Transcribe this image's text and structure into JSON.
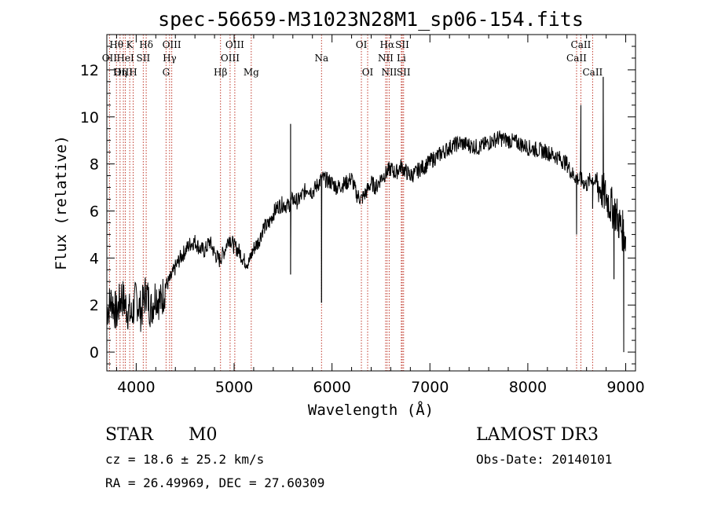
{
  "chart_data": {
    "type": "line",
    "title": "spec-56659-M31023N28M1_sp06-154.fits",
    "xlabel": "Wavelength (Å)",
    "ylabel": "Flux (relative)",
    "xlim": [
      3700,
      9100
    ],
    "ylim": [
      -0.8,
      13.5
    ],
    "xticks": [
      4000,
      5000,
      6000,
      7000,
      8000,
      9000
    ],
    "yticks": [
      0,
      2,
      4,
      6,
      8,
      10,
      12
    ],
    "tick_labels_x": [
      "4000",
      "5000",
      "6000",
      "7000",
      "8000",
      "9000"
    ],
    "tick_labels_y": [
      "0",
      "2",
      "4",
      "6",
      "8",
      "10",
      "12"
    ],
    "series": [
      {
        "name": "flux",
        "x": [
          3700,
          3750,
          3800,
          3850,
          3900,
          3950,
          4000,
          4050,
          4100,
          4150,
          4200,
          4250,
          4300,
          4350,
          4400,
          4450,
          4500,
          4550,
          4600,
          4650,
          4700,
          4750,
          4800,
          4850,
          4900,
          4950,
          5000,
          5050,
          5100,
          5150,
          5200,
          5250,
          5300,
          5350,
          5400,
          5450,
          5500,
          5550,
          5600,
          5650,
          5700,
          5750,
          5800,
          5850,
          5900,
          5950,
          6000,
          6050,
          6100,
          6150,
          6200,
          6250,
          6300,
          6350,
          6400,
          6450,
          6500,
          6550,
          6600,
          6650,
          6700,
          6750,
          6800,
          6850,
          6900,
          6950,
          7000,
          7100,
          7200,
          7300,
          7400,
          7500,
          7600,
          7700,
          7800,
          7900,
          8000,
          8100,
          8200,
          8300,
          8400,
          8450,
          8500,
          8550,
          8600,
          8650,
          8700,
          8750,
          8800,
          8850,
          8900,
          8950,
          9000
        ],
        "y": [
          1.8,
          2.2,
          1.6,
          2.4,
          1.9,
          1.5,
          2.3,
          1.7,
          2.6,
          1.8,
          2.5,
          2.1,
          2.8,
          3.1,
          3.6,
          4.0,
          4.3,
          4.6,
          4.7,
          4.4,
          4.3,
          4.7,
          4.2,
          3.9,
          4.3,
          4.9,
          4.5,
          4.3,
          3.9,
          3.8,
          4.4,
          4.7,
          5.3,
          5.4,
          5.9,
          6.2,
          6.3,
          6.2,
          6.5,
          6.4,
          6.7,
          7.0,
          6.8,
          7.1,
          7.4,
          7.3,
          7.2,
          7.0,
          7.1,
          7.2,
          7.4,
          6.7,
          6.5,
          6.8,
          7.2,
          7.0,
          7.4,
          7.6,
          7.8,
          7.6,
          7.9,
          7.7,
          7.5,
          7.6,
          7.8,
          7.9,
          8.1,
          8.4,
          8.7,
          8.9,
          8.8,
          8.7,
          8.9,
          9.1,
          9.0,
          8.9,
          8.7,
          8.6,
          8.5,
          8.3,
          8.0,
          7.6,
          7.4,
          7.3,
          7.1,
          7.4,
          7.2,
          6.9,
          6.6,
          6.2,
          5.9,
          5.3,
          4.9
        ]
      }
    ],
    "features": [
      {
        "x": 5577,
        "y": 9.7
      },
      {
        "x": 5577,
        "y": 3.3
      },
      {
        "x": 5893,
        "y": 2.1
      },
      {
        "x": 8498,
        "y": 5.0
      },
      {
        "x": 8542,
        "y": 10.5
      },
      {
        "x": 8662,
        "y": 6.1
      },
      {
        "x": 8770,
        "y": 11.7
      },
      {
        "x": 8880,
        "y": 3.1
      },
      {
        "x": 8980,
        "y": 0.0
      }
    ],
    "annotation_lines": [
      {
        "label": "Hθ",
        "x": 3798,
        "row": 1
      },
      {
        "label": "OII",
        "x": 3727,
        "row": 2
      },
      {
        "label": "OIII",
        "x": 3869,
        "row": 3
      },
      {
        "label": "Hη",
        "x": 3835,
        "row": 3
      },
      {
        "label": "HeI",
        "x": 3889,
        "row": 2
      },
      {
        "label": "K",
        "x": 3934,
        "row": 1
      },
      {
        "label": "SII",
        "x": 4072,
        "row": 2
      },
      {
        "label": "H",
        "x": 3969,
        "row": 3
      },
      {
        "label": "Hδ",
        "x": 4102,
        "row": 1
      },
      {
        "label": "OIII",
        "x": 4363,
        "row": 1
      },
      {
        "label": "Hγ",
        "x": 4341,
        "row": 2
      },
      {
        "label": "G",
        "x": 4305,
        "row": 3
      },
      {
        "label": "OIII",
        "x": 5007,
        "row": 1
      },
      {
        "label": "OIII",
        "x": 4959,
        "row": 2
      },
      {
        "label": "Hβ",
        "x": 4861,
        "row": 3
      },
      {
        "label": "Mg",
        "x": 5175,
        "row": 3
      },
      {
        "label": "Na",
        "x": 5893,
        "row": 2
      },
      {
        "label": "OI",
        "x": 6300,
        "row": 1
      },
      {
        "label": "OI",
        "x": 6364,
        "row": 3
      },
      {
        "label": "Hα",
        "x": 6563,
        "row": 1
      },
      {
        "label": "SII",
        "x": 6717,
        "row": 1
      },
      {
        "label": "NII",
        "x": 6548,
        "row": 2
      },
      {
        "label": "Li",
        "x": 6708,
        "row": 2
      },
      {
        "label": "NII",
        "x": 6584,
        "row": 3
      },
      {
        "label": "SII",
        "x": 6731,
        "row": 3
      },
      {
        "label": "CaII",
        "x": 8542,
        "row": 1
      },
      {
        "label": "CaII",
        "x": 8498,
        "row": 2
      },
      {
        "label": "CaII",
        "x": 8662,
        "row": 3
      }
    ]
  },
  "info": {
    "object_class": "STAR",
    "subclass": "M0",
    "survey": "LAMOST DR3",
    "redshift": "cz = 18.6 ± 25.2 km/s",
    "obs_date": "Obs-Date: 20140101",
    "coords": "RA =  26.49969, DEC =  27.60309"
  }
}
